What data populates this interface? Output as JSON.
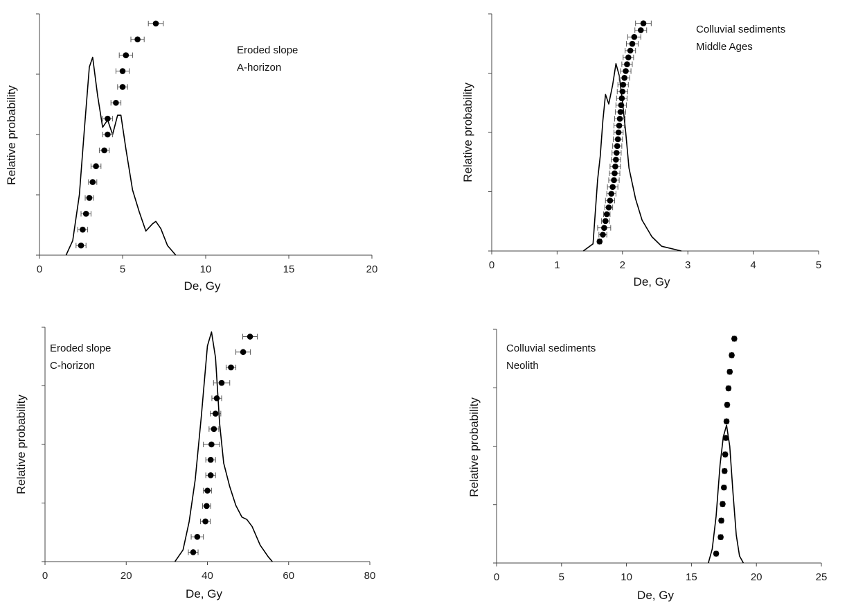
{
  "chart_data": [
    {
      "type": "scatter",
      "annotation": [
        "Eroded slope",
        "A-horizon"
      ],
      "xlabel": "De, Gy",
      "ylabel": "Relative probability",
      "xlim": [
        0,
        20
      ],
      "xticks": [
        0,
        5,
        10,
        15,
        20
      ],
      "points": [
        {
          "x": 2.5,
          "err": 0.3
        },
        {
          "x": 2.6,
          "err": 0.3
        },
        {
          "x": 2.8,
          "err": 0.3
        },
        {
          "x": 3.0,
          "err": 0.25
        },
        {
          "x": 3.2,
          "err": 0.25
        },
        {
          "x": 3.4,
          "err": 0.3
        },
        {
          "x": 3.9,
          "err": 0.3
        },
        {
          "x": 4.1,
          "err": 0.3
        },
        {
          "x": 4.1,
          "err": 0.3
        },
        {
          "x": 4.6,
          "err": 0.3
        },
        {
          "x": 5.0,
          "err": 0.3
        },
        {
          "x": 5.0,
          "err": 0.4
        },
        {
          "x": 5.2,
          "err": 0.4
        },
        {
          "x": 5.9,
          "err": 0.4
        },
        {
          "x": 7.0,
          "err": 0.45
        }
      ],
      "curve": [
        [
          1.6,
          0
        ],
        [
          2.0,
          0.06
        ],
        [
          2.4,
          0.25
        ],
        [
          2.7,
          0.52
        ],
        [
          3.0,
          0.78
        ],
        [
          3.2,
          0.82
        ],
        [
          3.5,
          0.66
        ],
        [
          3.8,
          0.53
        ],
        [
          4.1,
          0.56
        ],
        [
          4.4,
          0.5
        ],
        [
          4.7,
          0.58
        ],
        [
          4.9,
          0.58
        ],
        [
          5.2,
          0.44
        ],
        [
          5.6,
          0.27
        ],
        [
          6.0,
          0.18
        ],
        [
          6.4,
          0.1
        ],
        [
          6.8,
          0.13
        ],
        [
          7.0,
          0.14
        ],
        [
          7.3,
          0.11
        ],
        [
          7.7,
          0.04
        ],
        [
          8.2,
          0
        ]
      ]
    },
    {
      "type": "scatter",
      "annotation": [
        "Colluvial sediments",
        "Middle Ages"
      ],
      "xlabel": "De, Gy",
      "ylabel": "Relative probability",
      "xlim": [
        0,
        5
      ],
      "xticks": [
        0,
        1,
        2,
        3,
        4,
        5
      ],
      "points": [
        {
          "x": 1.65,
          "err": 0.03
        },
        {
          "x": 1.7,
          "err": 0.06
        },
        {
          "x": 1.72,
          "err": 0.1
        },
        {
          "x": 1.74,
          "err": 0.06
        },
        {
          "x": 1.76,
          "err": 0.05
        },
        {
          "x": 1.79,
          "err": 0.06
        },
        {
          "x": 1.81,
          "err": 0.07
        },
        {
          "x": 1.83,
          "err": 0.07
        },
        {
          "x": 1.85,
          "err": 0.08
        },
        {
          "x": 1.87,
          "err": 0.08
        },
        {
          "x": 1.88,
          "err": 0.08
        },
        {
          "x": 1.89,
          "err": 0.08
        },
        {
          "x": 1.9,
          "err": 0.07
        },
        {
          "x": 1.91,
          "err": 0.07
        },
        {
          "x": 1.92,
          "err": 0.07
        },
        {
          "x": 1.93,
          "err": 0.07
        },
        {
          "x": 1.94,
          "err": 0.07
        },
        {
          "x": 1.95,
          "err": 0.08
        },
        {
          "x": 1.96,
          "err": 0.08
        },
        {
          "x": 1.97,
          "err": 0.08
        },
        {
          "x": 1.98,
          "err": 0.08
        },
        {
          "x": 1.99,
          "err": 0.08
        },
        {
          "x": 2.0,
          "err": 0.08
        },
        {
          "x": 2.01,
          "err": 0.08
        },
        {
          "x": 2.03,
          "err": 0.08
        },
        {
          "x": 2.05,
          "err": 0.08
        },
        {
          "x": 2.07,
          "err": 0.08
        },
        {
          "x": 2.09,
          "err": 0.08
        },
        {
          "x": 2.12,
          "err": 0.08
        },
        {
          "x": 2.15,
          "err": 0.09
        },
        {
          "x": 2.18,
          "err": 0.1
        },
        {
          "x": 2.28,
          "err": 0.09
        },
        {
          "x": 2.32,
          "err": 0.12
        }
      ],
      "curve": [
        [
          1.4,
          0
        ],
        [
          1.55,
          0.03
        ],
        [
          1.62,
          0.3
        ],
        [
          1.66,
          0.4
        ],
        [
          1.7,
          0.55
        ],
        [
          1.74,
          0.66
        ],
        [
          1.79,
          0.62
        ],
        [
          1.85,
          0.7
        ],
        [
          1.9,
          0.79
        ],
        [
          1.95,
          0.74
        ],
        [
          2.0,
          0.63
        ],
        [
          2.05,
          0.5
        ],
        [
          2.1,
          0.35
        ],
        [
          2.2,
          0.22
        ],
        [
          2.3,
          0.13
        ],
        [
          2.45,
          0.06
        ],
        [
          2.6,
          0.02
        ],
        [
          2.9,
          0
        ]
      ]
    },
    {
      "type": "scatter",
      "annotation": [
        "Eroded slope",
        "C-horizon"
      ],
      "xlabel": "De, Gy",
      "ylabel": "Relative probability",
      "xlim": [
        0,
        80
      ],
      "xticks": [
        0,
        20,
        40,
        60,
        80
      ],
      "points": [
        {
          "x": 36.5,
          "err": 1.2
        },
        {
          "x": 37.5,
          "err": 1.5
        },
        {
          "x": 39.5,
          "err": 1.2
        },
        {
          "x": 39.8,
          "err": 1.0
        },
        {
          "x": 40.0,
          "err": 1.0
        },
        {
          "x": 40.8,
          "err": 1.2
        },
        {
          "x": 40.8,
          "err": 1.2
        },
        {
          "x": 41.0,
          "err": 2.0
        },
        {
          "x": 41.6,
          "err": 1.2
        },
        {
          "x": 42.0,
          "err": 1.3
        },
        {
          "x": 42.3,
          "err": 1.2
        },
        {
          "x": 43.5,
          "err": 2.0
        },
        {
          "x": 45.8,
          "err": 1.2
        },
        {
          "x": 48.8,
          "err": 1.8
        },
        {
          "x": 50.5,
          "err": 1.8
        }
      ],
      "curve": [
        [
          32,
          0
        ],
        [
          34,
          0.05
        ],
        [
          35.5,
          0.17
        ],
        [
          37,
          0.35
        ],
        [
          38.5,
          0.62
        ],
        [
          40,
          0.92
        ],
        [
          41,
          0.98
        ],
        [
          42,
          0.87
        ],
        [
          43,
          0.59
        ],
        [
          44,
          0.42
        ],
        [
          45.5,
          0.32
        ],
        [
          47,
          0.24
        ],
        [
          48.5,
          0.19
        ],
        [
          49.7,
          0.18
        ],
        [
          51,
          0.15
        ],
        [
          53,
          0.07
        ],
        [
          55,
          0.02
        ],
        [
          56,
          0
        ]
      ]
    },
    {
      "type": "scatter",
      "annotation": [
        "Colluvial sediments",
        "Neolith"
      ],
      "xlabel": "De, Gy",
      "ylabel": "Relative probability",
      "xlim": [
        0,
        25
      ],
      "xticks": [
        0,
        5,
        10,
        15,
        20,
        25
      ],
      "points": [
        {
          "x": 16.9,
          "err": 0.15
        },
        {
          "x": 17.25,
          "err": 0.15
        },
        {
          "x": 17.3,
          "err": 0.15
        },
        {
          "x": 17.4,
          "err": 0.15
        },
        {
          "x": 17.5,
          "err": 0.15
        },
        {
          "x": 17.55,
          "err": 0.15
        },
        {
          "x": 17.6,
          "err": 0.15
        },
        {
          "x": 17.65,
          "err": 0.15
        },
        {
          "x": 17.7,
          "err": 0.15
        },
        {
          "x": 17.75,
          "err": 0.15
        },
        {
          "x": 17.85,
          "err": 0.15
        },
        {
          "x": 17.95,
          "err": 0.15
        },
        {
          "x": 18.1,
          "err": 0.15
        },
        {
          "x": 18.3,
          "err": 0.15
        }
      ],
      "curve": [
        [
          16.3,
          0
        ],
        [
          16.6,
          0.06
        ],
        [
          16.9,
          0.2
        ],
        [
          17.2,
          0.42
        ],
        [
          17.45,
          0.54
        ],
        [
          17.7,
          0.59
        ],
        [
          17.95,
          0.5
        ],
        [
          18.2,
          0.3
        ],
        [
          18.45,
          0.12
        ],
        [
          18.7,
          0.03
        ],
        [
          19.0,
          0
        ]
      ]
    }
  ]
}
